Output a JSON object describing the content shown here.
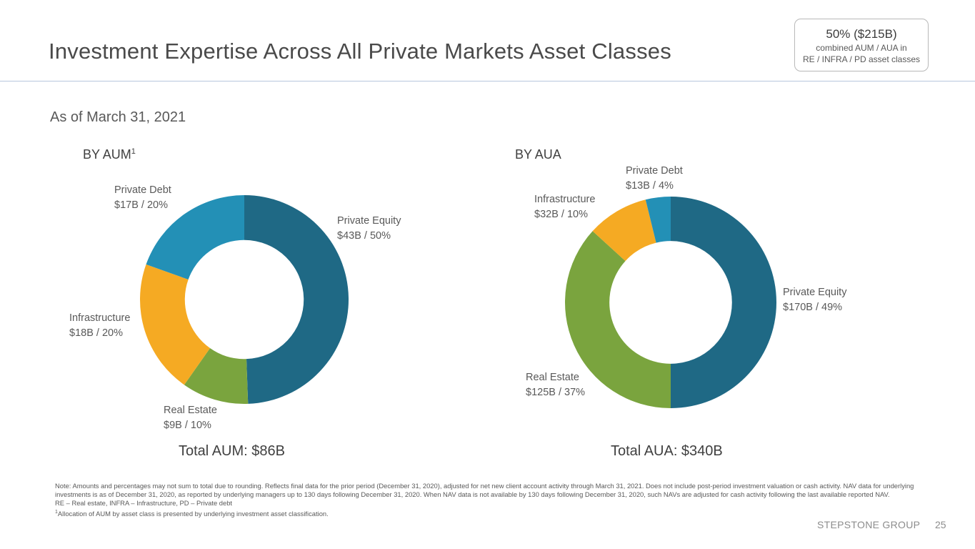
{
  "slide": {
    "title": "Investment Expertise Across All Private Markets Asset Classes",
    "as_of": "As of March 31, 2021",
    "callout": {
      "headline": "50% ($215B)",
      "line1": "combined AUM / AUA in",
      "line2": "RE / INFRA / PD asset classes"
    },
    "notes": {
      "line1": "Note: Amounts and percentages may not sum to total due to rounding. Reflects final data for the prior period (December 31, 2020), adjusted for net new client account activity through March 31, 2021. Does not include post-period investment valuation or cash activity. NAV data for underlying investments is as of December 31, 2020, as reported by underlying managers up to 130 days following December 31, 2020. When NAV data is not available by 130 days following December 31, 2020, such NAVs are adjusted for cash activity following the last available reported NAV.",
      "line2": "RE – Real estate, INFRA – Infrastructure, PD – Private debt",
      "footnote_marker": "1",
      "line3": "Allocation of AUM by asset class is presented by underlying investment asset classification."
    },
    "brand": "STEPSTONE GROUP",
    "page_number": "25"
  },
  "colors": {
    "private_equity": "#1f6985",
    "real_estate": "#7aa43e",
    "infrastructure": "#f5aa23",
    "private_debt": "#2390b6"
  },
  "chart_data": [
    {
      "type": "pie",
      "donut": true,
      "title": "BY AUM",
      "title_superscript": "1",
      "total_label": "Total AUM: $86B",
      "units": "$B",
      "slices": [
        {
          "name": "Private Equity",
          "value": 43,
          "percent": 50,
          "value_label": "$43B / 50%",
          "color": "#1f6985"
        },
        {
          "name": "Real Estate",
          "value": 9,
          "percent": 10,
          "value_label": "$9B / 10%",
          "color": "#7aa43e"
        },
        {
          "name": "Infrastructure",
          "value": 18,
          "percent": 20,
          "value_label": "$18B / 20%",
          "color": "#f5aa23"
        },
        {
          "name": "Private Debt",
          "value": 17,
          "percent": 20,
          "value_label": "$17B / 20%",
          "color": "#2390b6"
        }
      ]
    },
    {
      "type": "pie",
      "donut": true,
      "title": "BY AUA",
      "title_superscript": "",
      "total_label": "Total AUA: $340B",
      "units": "$B",
      "slices": [
        {
          "name": "Private Equity",
          "value": 170,
          "percent": 49,
          "value_label": "$170B / 49%",
          "color": "#1f6985"
        },
        {
          "name": "Real Estate",
          "value": 125,
          "percent": 37,
          "value_label": "$125B / 37%",
          "color": "#7aa43e"
        },
        {
          "name": "Infrastructure",
          "value": 32,
          "percent": 10,
          "value_label": "$32B / 10%",
          "color": "#f5aa23"
        },
        {
          "name": "Private Debt",
          "value": 13,
          "percent": 4,
          "value_label": "$13B / 4%",
          "color": "#2390b6"
        }
      ]
    }
  ]
}
